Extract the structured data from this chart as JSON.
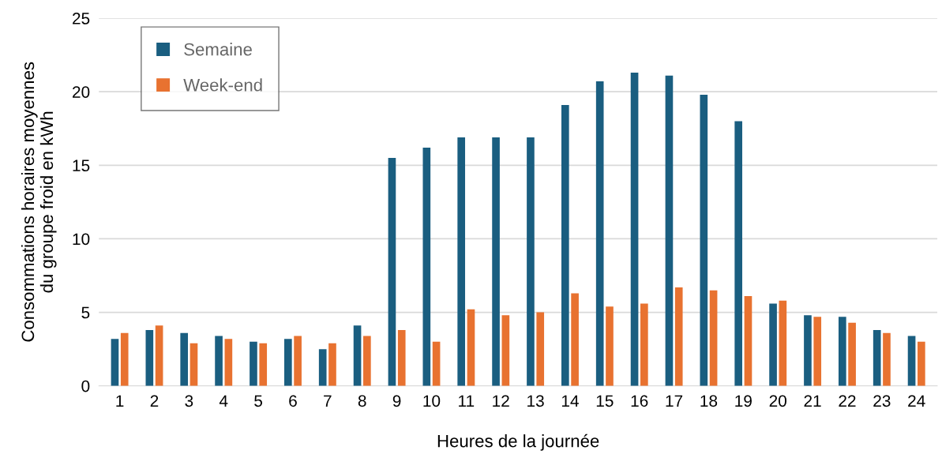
{
  "chart_data": {
    "type": "bar",
    "xlabel": "Heures de la journée",
    "ylabel": "Consommations horaires moyennes\ndu groupe froid en kWh",
    "categories": [
      "1",
      "2",
      "3",
      "4",
      "5",
      "6",
      "7",
      "8",
      "9",
      "10",
      "11",
      "12",
      "13",
      "14",
      "15",
      "16",
      "17",
      "18",
      "19",
      "20",
      "21",
      "22",
      "23",
      "24"
    ],
    "series": [
      {
        "name": "Semaine",
        "color": "#1a5e80",
        "values": [
          3.2,
          3.8,
          3.6,
          3.4,
          3.0,
          3.2,
          2.5,
          4.1,
          15.5,
          16.2,
          16.9,
          16.9,
          16.9,
          19.1,
          20.7,
          21.3,
          21.1,
          19.8,
          18.0,
          5.6,
          4.8,
          4.7,
          3.8,
          3.4
        ]
      },
      {
        "name": "Week-end",
        "color": "#e87230",
        "values": [
          3.6,
          4.1,
          2.9,
          3.2,
          2.9,
          3.4,
          2.9,
          3.4,
          3.8,
          3.0,
          5.2,
          4.8,
          5.0,
          6.3,
          5.4,
          5.6,
          6.7,
          6.5,
          6.1,
          5.8,
          4.7,
          4.3,
          3.6,
          3.0
        ]
      }
    ],
    "ylim": [
      0,
      25
    ],
    "yticks": [
      0,
      5,
      10,
      15,
      20,
      25
    ],
    "grid": "y",
    "legend": "top left"
  }
}
